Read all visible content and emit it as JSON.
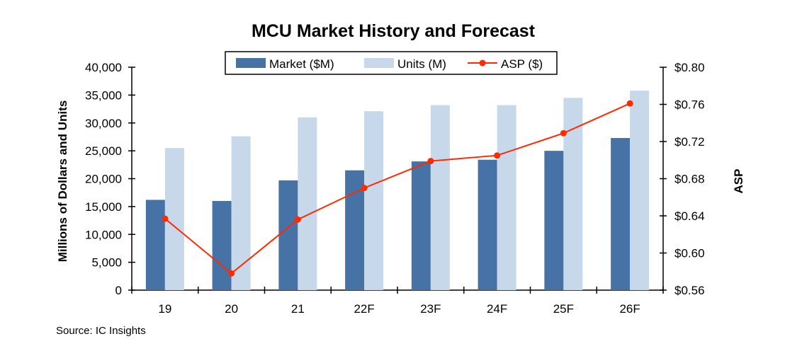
{
  "chart_data": {
    "type": "bar",
    "title": "MCU Market History and Forecast",
    "source": "Source:  IC Insights",
    "categories": [
      "19",
      "20",
      "21",
      "22F",
      "23F",
      "24F",
      "25F",
      "26F"
    ],
    "series": [
      {
        "name": "Market ($M)",
        "axis": "left",
        "kind": "bar",
        "color": "#4672a6",
        "values": [
          16200,
          16000,
          19700,
          21500,
          23100,
          23400,
          25000,
          27300
        ]
      },
      {
        "name": "Units (M)",
        "axis": "left",
        "kind": "bar",
        "color": "#c6d8ea",
        "values": [
          25500,
          27600,
          31000,
          32100,
          33200,
          33200,
          34500,
          35800
        ]
      },
      {
        "name": "ASP ($)",
        "axis": "right",
        "kind": "line",
        "color": "#ff2a00",
        "values": [
          0.637,
          0.578,
          0.636,
          0.67,
          0.699,
          0.705,
          0.729,
          0.761
        ]
      }
    ],
    "ylabel": "Millions of Dollars and Units",
    "y2label": "ASP",
    "ylim": [
      0,
      40000
    ],
    "y2lim": [
      0.56,
      0.8
    ],
    "yticks": [
      "40,000",
      "35,000",
      "30,000",
      "25,000",
      "20,000",
      "15,000",
      "10,000",
      "5,000",
      "0"
    ],
    "y2ticks": [
      "$0.80",
      "$0.76",
      "$0.72",
      "$0.68",
      "$0.64",
      "$0.60",
      "$0.56"
    ],
    "legend": {
      "placement": "top-center",
      "border": true
    },
    "grid": false
  }
}
